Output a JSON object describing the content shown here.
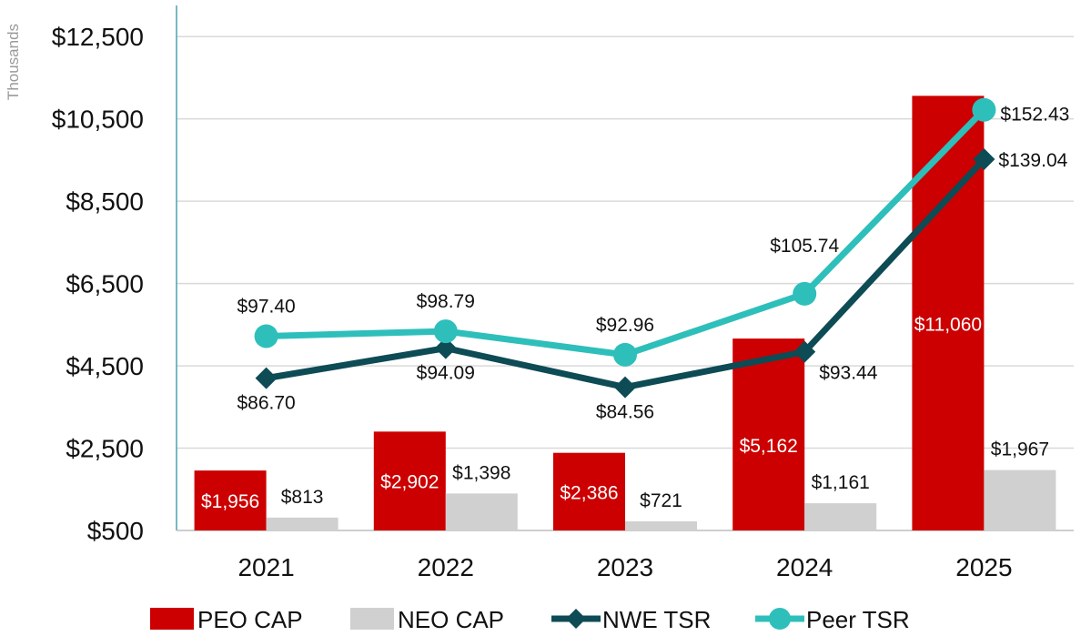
{
  "chart_data": {
    "type": "bar",
    "title": "",
    "unit_label": "Thousands",
    "categories": [
      "2021",
      "2022",
      "2023",
      "2024",
      "2025"
    ],
    "ylim": [
      500,
      13300
    ],
    "yticks": [
      500,
      2500,
      4500,
      6500,
      8500,
      10500,
      12500
    ],
    "ytick_labels": [
      "$500",
      "$2,500",
      "$4,500",
      "$6,500",
      "$8,500",
      "$10,500",
      "$12,500"
    ],
    "bar_series": [
      {
        "name": "PEO CAP",
        "color": "#cc0000",
        "label_color": "#ffffff",
        "values": [
          1956,
          2902,
          2386,
          5162,
          11060
        ],
        "labels": [
          "$1,956",
          "$2,902",
          "$2,386",
          "$5,162",
          "$11,060"
        ]
      },
      {
        "name": "NEO CAP",
        "color": "#d0d0d0",
        "label_color": "#111111",
        "values": [
          813,
          1398,
          721,
          1161,
          1967
        ],
        "labels": [
          "$813",
          "$1,398",
          "$721",
          "$1,161",
          "$1,967"
        ]
      }
    ],
    "line_series": [
      {
        "name": "NWE TSR",
        "color": "#0d4b55",
        "marker": "diamond",
        "values": [
          86.7,
          94.09,
          84.56,
          93.44,
          139.04
        ],
        "labels": [
          "$86.70",
          "$94.09",
          "$84.56",
          "$93.44",
          "$139.04"
        ],
        "plot_positions": [
          4200,
          4930,
          3980,
          4840,
          9520
        ]
      },
      {
        "name": "Peer TSR",
        "color": "#2ebfbb",
        "marker": "circle",
        "values": [
          97.4,
          98.79,
          92.96,
          105.74,
          152.43
        ],
        "labels": [
          "$97.40",
          "$98.79",
          "$92.96",
          "$105.74",
          "$152.43"
        ],
        "plot_positions": [
          5220,
          5340,
          4770,
          6250,
          10720
        ]
      }
    ],
    "legend": [
      "PEO CAP",
      "NEO CAP",
      "NWE TSR",
      "Peer TSR"
    ],
    "legend_position": "bottom",
    "grid": true
  }
}
